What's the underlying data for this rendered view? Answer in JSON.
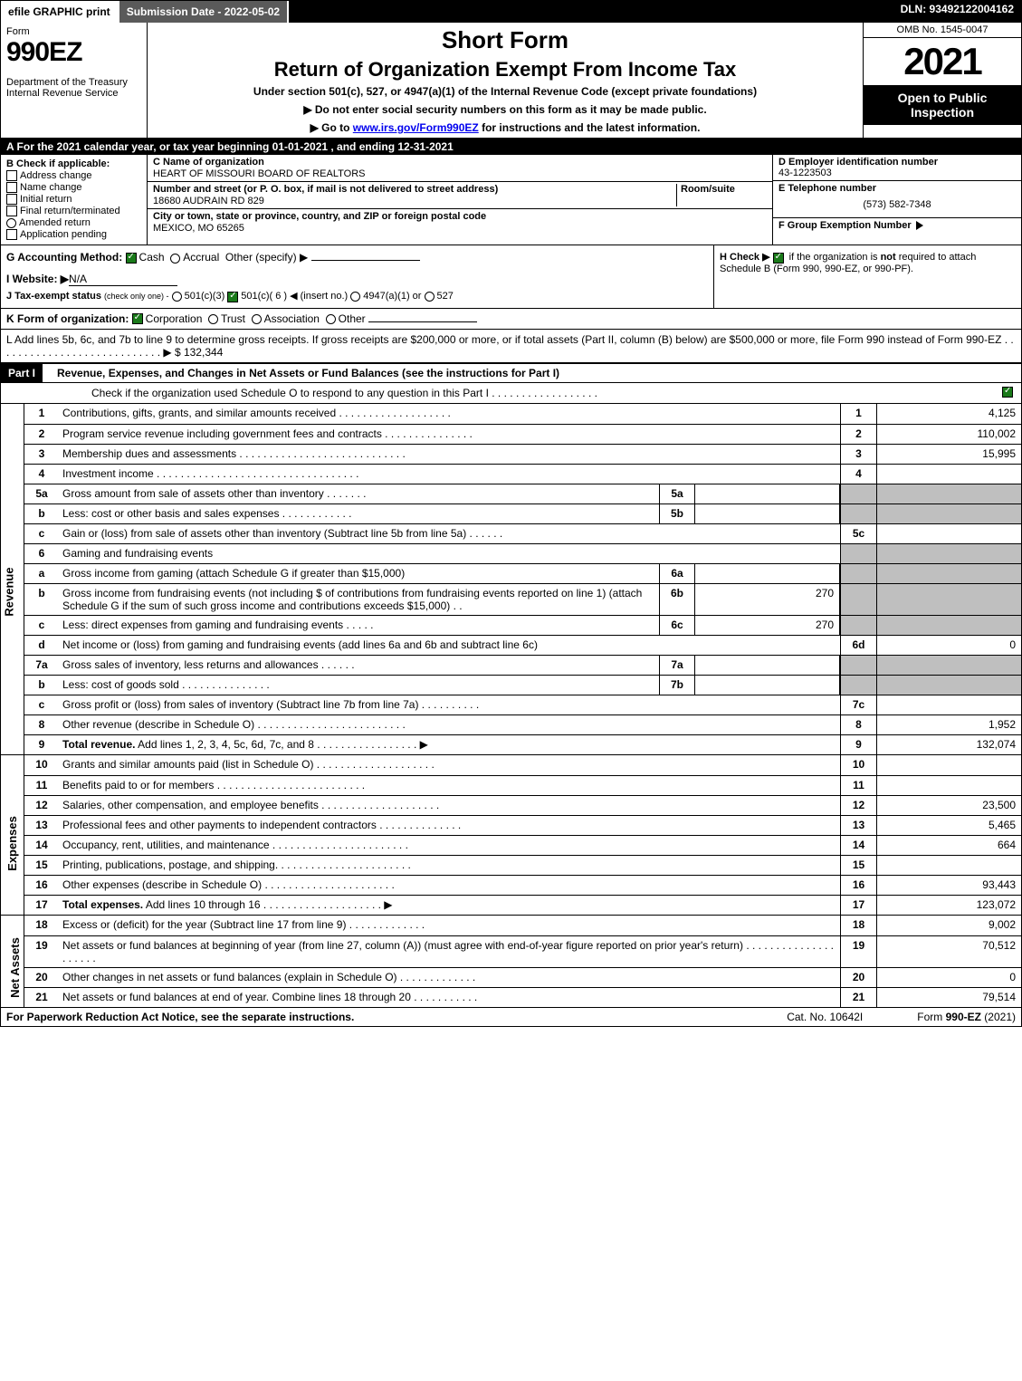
{
  "colors": {
    "black": "#000000",
    "white": "#ffffff",
    "grey_shade": "#bfbfbf",
    "darkgrey": "#5a5a5a",
    "check_green": "#1a7a1a",
    "link": "#0000ee"
  },
  "topbar": {
    "efile": "efile GRAPHIC print",
    "sub_label": "Submission Date - 2022-05-02",
    "dln": "DLN: 93492122004162"
  },
  "header": {
    "form_label": "Form",
    "form_number": "990EZ",
    "dept": "Department of the Treasury\nInternal Revenue Service",
    "title_short": "Short Form",
    "title_main": "Return of Organization Exempt From Income Tax",
    "subtitle": "Under section 501(c), 527, or 4947(a)(1) of the Internal Revenue Code (except private foundations)",
    "instr1": "▶ Do not enter social security numbers on this form as it may be made public.",
    "instr2_pre": "▶ Go to ",
    "instr2_link": "www.irs.gov/Form990EZ",
    "instr2_post": " for instructions and the latest information.",
    "omb": "OMB No. 1545-0047",
    "year": "2021",
    "open_public": "Open to Public Inspection"
  },
  "row_a": "A  For the 2021 calendar year, or tax year beginning 01-01-2021 , and ending 12-31-2021",
  "section_b": {
    "heading": "B  Check if applicable:",
    "opts": [
      "Address change",
      "Name change",
      "Initial return",
      "Final return/terminated",
      "Amended return",
      "Application pending"
    ]
  },
  "section_c": {
    "name_lbl": "C Name of organization",
    "name": "HEART OF MISSOURI BOARD OF REALTORS",
    "addr_lbl": "Number and street (or P. O. box, if mail is not delivered to street address)",
    "room_lbl": "Room/suite",
    "addr": "18680 AUDRAIN RD 829",
    "city_lbl": "City or town, state or province, country, and ZIP or foreign postal code",
    "city": "MEXICO, MO  65265"
  },
  "section_d": {
    "lbl": "D Employer identification number",
    "val": "43-1223503"
  },
  "section_e": {
    "lbl": "E Telephone number",
    "val": "(573) 582-7348"
  },
  "section_f": {
    "lbl": "F Group Exemption Number",
    "arrow": "▶"
  },
  "row_g": {
    "label": "G Accounting Method:",
    "cash": "Cash",
    "accrual": "Accrual",
    "other": "Other (specify) ▶"
  },
  "row_h": {
    "text1": "H  Check ▶",
    "text2": "if the organization is ",
    "not": "not",
    "text3": " required to attach Schedule B (Form 990, 990-EZ, or 990-PF)."
  },
  "row_i": {
    "label": "I Website: ▶",
    "val": "N/A"
  },
  "row_j": {
    "label": "J Tax-exempt status",
    "sub": "(check only one) -",
    "opt1": "501(c)(3)",
    "opt2": "501(c)( 6 ) ◀ (insert no.)",
    "opt3": "4947(a)(1) or",
    "opt4": "527"
  },
  "row_k": {
    "label": "K Form of organization:",
    "opts": [
      "Corporation",
      "Trust",
      "Association",
      "Other"
    ]
  },
  "row_l": {
    "text": "L Add lines 5b, 6c, and 7b to line 9 to determine gross receipts. If gross receipts are $200,000 or more, or if total assets (Part II, column (B) below) are $500,000 or more, file Form 990 instead of Form 990-EZ  .  .  .  .  .  .  .  .  .  .  .  .  .  .  .  .  .  .  .  .  .  .  .  .  .  .  .  .  ▶",
    "amount": "$ 132,344"
  },
  "part1": {
    "label": "Part I",
    "title": "Revenue, Expenses, and Changes in Net Assets or Fund Balances (see the instructions for Part I)",
    "sub": "Check if the organization used Schedule O to respond to any question in this Part I  .  .  .  .  .  .  .  .  .  .  .  .  .  .  .  .  .  ."
  },
  "sides": {
    "revenue": "Revenue",
    "expenses": "Expenses",
    "netassets": "Net Assets"
  },
  "lines_rev": [
    {
      "n": "1",
      "d": "Contributions, gifts, grants, and similar amounts received  .  .  .  .  .  .  .  .  .  .  .  .  .  .  .  .  .  .  .",
      "rn": "1",
      "rv": "4,125"
    },
    {
      "n": "2",
      "d": "Program service revenue including government fees and contracts  .  .  .  .  .  .  .  .  .  .  .  .  .  .  .",
      "rn": "2",
      "rv": "110,002"
    },
    {
      "n": "3",
      "d": "Membership dues and assessments  .  .  .  .  .  .  .  .  .  .  .  .  .  .  .  .  .  .  .  .  .  .  .  .  .  .  .  .",
      "rn": "3",
      "rv": "15,995"
    },
    {
      "n": "4",
      "d": "Investment income  .  .  .  .  .  .  .  .  .  .  .  .  .  .  .  .  .  .  .  .  .  .  .  .  .  .  .  .  .  .  .  .  .  .",
      "rn": "4",
      "rv": ""
    },
    {
      "n": "5a",
      "d": "Gross amount from sale of assets other than inventory  .  .  .  .  .  .  .",
      "mb": "5a",
      "mv": "",
      "shaded": true
    },
    {
      "n": "b",
      "d": "Less: cost or other basis and sales expenses  .  .  .  .  .  .  .  .  .  .  .  .",
      "mb": "5b",
      "mv": "",
      "shaded": true
    },
    {
      "n": "c",
      "d": "Gain or (loss) from sale of assets other than inventory (Subtract line 5b from line 5a)  .  .  .  .  .  .",
      "rn": "5c",
      "rv": ""
    },
    {
      "n": "6",
      "d": "Gaming and fundraising events",
      "shaded": true
    },
    {
      "n": "a",
      "d": "Gross income from gaming (attach Schedule G if greater than $15,000)",
      "mb": "6a",
      "mv": "",
      "shaded": true
    },
    {
      "n": "b",
      "d": "Gross income from fundraising events (not including $                          of contributions from fundraising events reported on line 1) (attach Schedule G if the sum of such gross income and contributions exceeds $15,000)    .   .",
      "mb": "6b",
      "mv": "270",
      "shaded": true
    },
    {
      "n": "c",
      "d": "Less: direct expenses from gaming and fundraising events   .  .  .  .  .",
      "mb": "6c",
      "mv": "270",
      "shaded": true
    },
    {
      "n": "d",
      "d": "Net income or (loss) from gaming and fundraising events (add lines 6a and 6b and subtract line 6c)",
      "rn": "6d",
      "rv": "0"
    },
    {
      "n": "7a",
      "d": "Gross sales of inventory, less returns and allowances  .  .  .  .  .  .",
      "mb": "7a",
      "mv": "",
      "shaded": true
    },
    {
      "n": "b",
      "d": "Less: cost of goods sold         .  .  .  .  .  .  .  .  .  .  .  .  .  .  .",
      "mb": "7b",
      "mv": "",
      "shaded": true
    },
    {
      "n": "c",
      "d": "Gross profit or (loss) from sales of inventory (Subtract line 7b from line 7a)  .  .  .  .  .  .  .  .  .  .",
      "rn": "7c",
      "rv": ""
    },
    {
      "n": "8",
      "d": "Other revenue (describe in Schedule O)  .  .  .  .  .  .  .  .  .  .  .  .  .  .  .  .  .  .  .  .  .  .  .  .  .",
      "rn": "8",
      "rv": "1,952"
    },
    {
      "n": "9",
      "d": "<b>Total revenue.</b> Add lines 1, 2, 3, 4, 5c, 6d, 7c, and 8   .  .  .  .  .  .  .  .  .  .  .  .  .  .  .  .  .   ▶",
      "rn": "9",
      "rv": "132,074",
      "bold": true
    }
  ],
  "lines_exp": [
    {
      "n": "10",
      "d": "Grants and similar amounts paid (list in Schedule O)  .  .  .  .  .  .  .  .  .  .  .  .  .  .  .  .  .  .  .  .",
      "rn": "10",
      "rv": ""
    },
    {
      "n": "11",
      "d": "Benefits paid to or for members       .  .  .  .  .  .  .  .  .  .  .  .  .  .  .  .  .  .  .  .  .  .  .  .  .",
      "rn": "11",
      "rv": ""
    },
    {
      "n": "12",
      "d": "Salaries, other compensation, and employee benefits .  .  .  .  .  .  .  .  .  .  .  .  .  .  .  .  .  .  .  .",
      "rn": "12",
      "rv": "23,500"
    },
    {
      "n": "13",
      "d": "Professional fees and other payments to independent contractors  .  .  .  .  .  .  .  .  .  .  .  .  .  .",
      "rn": "13",
      "rv": "5,465"
    },
    {
      "n": "14",
      "d": "Occupancy, rent, utilities, and maintenance .  .  .  .  .  .  .  .  .  .  .  .  .  .  .  .  .  .  .  .  .  .  .",
      "rn": "14",
      "rv": "664"
    },
    {
      "n": "15",
      "d": "Printing, publications, postage, and shipping.  .  .  .  .  .  .  .  .  .  .  .  .  .  .  .  .  .  .  .  .  .  .",
      "rn": "15",
      "rv": ""
    },
    {
      "n": "16",
      "d": "Other expenses (describe in Schedule O)      .  .  .  .  .  .  .  .  .  .  .  .  .  .  .  .  .  .  .  .  .  .",
      "rn": "16",
      "rv": "93,443"
    },
    {
      "n": "17",
      "d": "<b>Total expenses.</b> Add lines 10 through 16     .  .  .  .  .  .  .  .  .  .  .  .  .  .  .  .  .  .  .  .   ▶",
      "rn": "17",
      "rv": "123,072",
      "bold": true
    }
  ],
  "lines_net": [
    {
      "n": "18",
      "d": "Excess or (deficit) for the year (Subtract line 17 from line 9)        .  .  .  .  .  .  .  .  .  .  .  .  .",
      "rn": "18",
      "rv": "9,002"
    },
    {
      "n": "19",
      "d": "Net assets or fund balances at beginning of year (from line 27, column (A)) (must agree with end-of-year figure reported on prior year's return) .  .  .  .  .  .  .  .  .  .  .  .  .  .  .  .  .  .  .  .  .",
      "rn": "19",
      "rv": "70,512"
    },
    {
      "n": "20",
      "d": "Other changes in net assets or fund balances (explain in Schedule O) .  .  .  .  .  .  .  .  .  .  .  .  .",
      "rn": "20",
      "rv": "0"
    },
    {
      "n": "21",
      "d": "Net assets or fund balances at end of year. Combine lines 18 through 20 .  .  .  .  .  .  .  .  .  .  .",
      "rn": "21",
      "rv": "79,514"
    }
  ],
  "footer": {
    "left": "For Paperwork Reduction Act Notice, see the separate instructions.",
    "mid": "Cat. No. 10642I",
    "right_pre": "Form ",
    "right_bold": "990-EZ",
    "right_post": " (2021)"
  }
}
